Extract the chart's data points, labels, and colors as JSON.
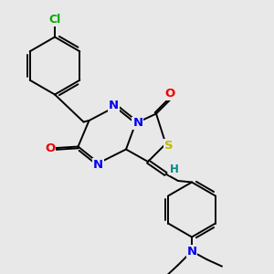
{
  "bg_color": "#e8e8e8",
  "bond_color": "#000000",
  "bond_width": 1.4,
  "dbo": 0.06,
  "atom_colors": {
    "N": "#0000ee",
    "O": "#ee0000",
    "S": "#bbbb00",
    "Cl": "#00aa00",
    "H": "#008888",
    "C": "#000000"
  },
  "fs": 8.5,
  "xlim": [
    0.5,
    10.5
  ],
  "ylim": [
    0.5,
    10.5
  ]
}
